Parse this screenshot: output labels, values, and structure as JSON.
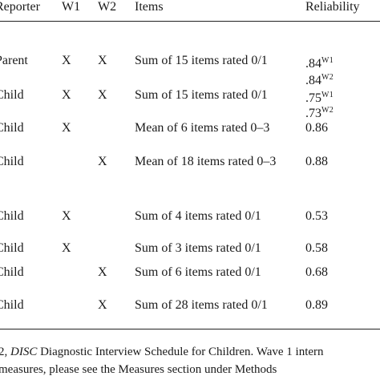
{
  "header": {
    "reporter": "Reporter",
    "w1": "W1",
    "w2": "W2",
    "items": "Items",
    "reliability": "Reliability"
  },
  "rows": [
    {
      "reporter": "Parent",
      "w1": "X",
      "w2": "X",
      "items": "Sum of 15 items rated 0/1",
      "rel1": ".84",
      "sup1": "W1",
      "rel2": ".84",
      "sup2": "W2"
    },
    {
      "reporter": "Child",
      "w1": "X",
      "w2": "X",
      "items": "Sum of 15 items rated 0/1",
      "rel1": ".75",
      "sup1": "W1",
      "rel2": ".73",
      "sup2": "W2"
    },
    {
      "reporter": "Child",
      "w1": "X",
      "w2": "",
      "items": "Mean of 6 items rated 0–3",
      "rel1": "0.86"
    },
    {
      "reporter": "Child",
      "w1": "",
      "w2": "X",
      "items": "Mean of 18 items rated 0–3",
      "rel1": "0.88"
    },
    {
      "reporter": "Child",
      "w1": "X",
      "w2": "",
      "items": "Sum of 4 items rated 0/1",
      "rel1": "0.53"
    },
    {
      "reporter": "Child",
      "w1": "X",
      "w2": "",
      "items": "Sum of 3 items rated 0/1",
      "rel1": "0.58"
    },
    {
      "reporter": "Child",
      "w1": "",
      "w2": "X",
      "items": "Sum of 6 items rated 0/1",
      "rel1": "0.68"
    },
    {
      "reporter": "Child",
      "w1": "",
      "w2": "X",
      "items": "Sum of 28 items rated 0/1",
      "rel1": "0.89"
    }
  ],
  "footnote": {
    "line1_prefix": " 2, ",
    "line1_italic": "DISC",
    "line1_rest": " Diagnostic Interview Schedule for Children. Wave 1 intern",
    "line2": "measures, please see the Measures section under Methods"
  }
}
